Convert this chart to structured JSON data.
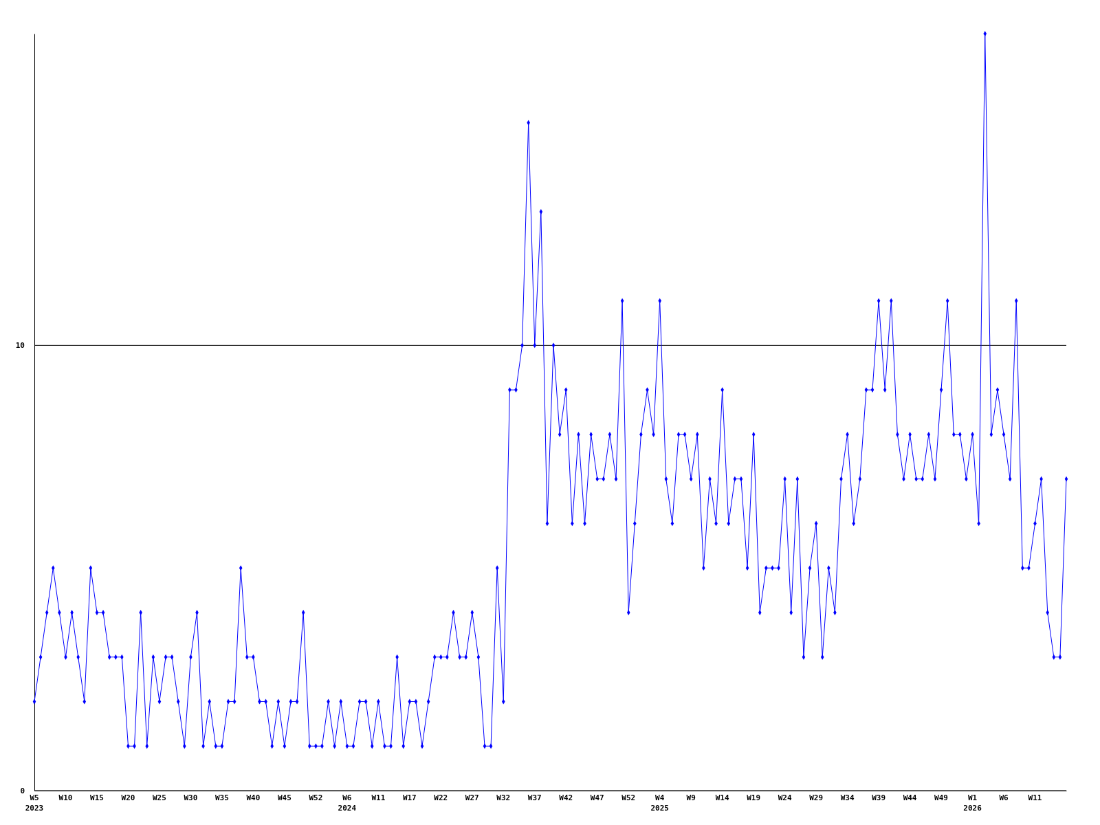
{
  "chart_data": {
    "type": "line",
    "categories": [
      "W5\n2023",
      null,
      null,
      null,
      null,
      "W10",
      null,
      null,
      null,
      null,
      "W15",
      null,
      null,
      null,
      null,
      "W20",
      null,
      null,
      null,
      null,
      "W25",
      null,
      null,
      null,
      null,
      "W30",
      null,
      null,
      null,
      null,
      "W35",
      null,
      null,
      null,
      null,
      "W40",
      null,
      null,
      null,
      null,
      "W45",
      null,
      null,
      null,
      null,
      "W52",
      null,
      null,
      null,
      null,
      "W6\n2024",
      null,
      null,
      null,
      null,
      "W11",
      null,
      null,
      null,
      null,
      "W17",
      null,
      null,
      null,
      null,
      "W22",
      null,
      null,
      null,
      null,
      "W27",
      null,
      null,
      null,
      null,
      "W32",
      null,
      null,
      null,
      null,
      "W37",
      null,
      null,
      null,
      null,
      "W42",
      null,
      null,
      null,
      null,
      "W47",
      null,
      null,
      null,
      null,
      "W52",
      null,
      null,
      null,
      null,
      "W4\n2025",
      null,
      null,
      null,
      null,
      "W9",
      null,
      null,
      null,
      null,
      "W14",
      null,
      null,
      null,
      null,
      "W19",
      null,
      null,
      null,
      null,
      "W24",
      null,
      null,
      null,
      null,
      "W29",
      null,
      null,
      null,
      null,
      "W34",
      null,
      null,
      null,
      null,
      "W39",
      null,
      null,
      null,
      null,
      "W44",
      null,
      null,
      null,
      null,
      "W49",
      null,
      null,
      null,
      null,
      "W1\n2026",
      null,
      null,
      null,
      null,
      "W6",
      null,
      null,
      null,
      null,
      "W11",
      null,
      null,
      null,
      null,
      null
    ],
    "series": [
      {
        "color": "#0000ff",
        "values": [
          2,
          3,
          4,
          5,
          4,
          3,
          4,
          3,
          2,
          5,
          4,
          4,
          3,
          3,
          3,
          1,
          1,
          4,
          1,
          3,
          2,
          3,
          3,
          2,
          1,
          3,
          4,
          1,
          2,
          1,
          1,
          2,
          2,
          5,
          3,
          3,
          2,
          2,
          1,
          2,
          1,
          2,
          2,
          4,
          1,
          1,
          1,
          2,
          1,
          2,
          1,
          1,
          2,
          2,
          1,
          2,
          1,
          1,
          3,
          1,
          2,
          2,
          1,
          2,
          3,
          3,
          3,
          4,
          3,
          3,
          4,
          3,
          1,
          1,
          5,
          2,
          9,
          9,
          10,
          15,
          10,
          13,
          6,
          10,
          8,
          9,
          6,
          8,
          6,
          8,
          7,
          7,
          8,
          7,
          11,
          4,
          6,
          8,
          9,
          8,
          11,
          7,
          6,
          8,
          8,
          7,
          8,
          5,
          7,
          6,
          9,
          6,
          7,
          7,
          5,
          8,
          4,
          5,
          5,
          5,
          7,
          4,
          7,
          3,
          5,
          6,
          3,
          5,
          4,
          7,
          8,
          6,
          7,
          9,
          9,
          11,
          9,
          11,
          8,
          7,
          8,
          7,
          7,
          8,
          7,
          9,
          11,
          8,
          8,
          7,
          8,
          6,
          17,
          8,
          9,
          8,
          7,
          11,
          5,
          5,
          6,
          7,
          4,
          3,
          3,
          7
        ]
      }
    ],
    "ylim": [
      0,
      17
    ],
    "yticks": [
      0,
      10
    ],
    "grid": "y",
    "marker": "diamond",
    "line_style": "solid"
  }
}
